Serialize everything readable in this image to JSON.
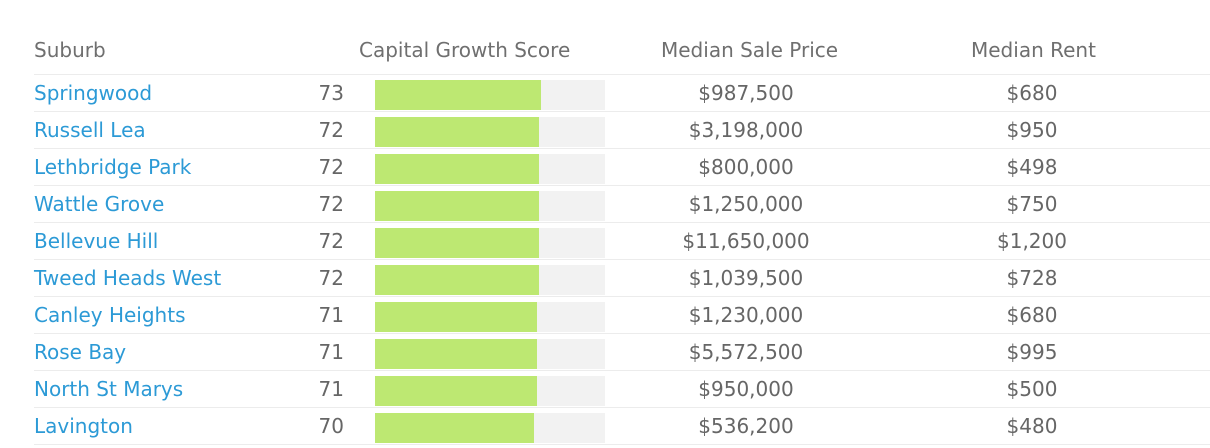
{
  "table": {
    "headers": {
      "suburb": "Suburb",
      "score": "Capital Growth Score",
      "price": "Median Sale Price",
      "rent": "Median Rent"
    },
    "colors": {
      "link": "#2c9ad6",
      "bar_fill": "#bde872",
      "bar_track": "#f2f2f2",
      "text": "#666666",
      "divider": "#ececec"
    },
    "rows": [
      {
        "suburb": "Springwood",
        "score": "73",
        "score_value": 73,
        "price": "$987,500",
        "rent": "$680"
      },
      {
        "suburb": "Russell Lea",
        "score": "72",
        "score_value": 72,
        "price": "$3,198,000",
        "rent": "$950"
      },
      {
        "suburb": "Lethbridge Park",
        "score": "72",
        "score_value": 72,
        "price": "$800,000",
        "rent": "$498"
      },
      {
        "suburb": "Wattle Grove",
        "score": "72",
        "score_value": 72,
        "price": "$1,250,000",
        "rent": "$750"
      },
      {
        "suburb": "Bellevue Hill",
        "score": "72",
        "score_value": 72,
        "price": "$11,650,000",
        "rent": "$1,200"
      },
      {
        "suburb": "Tweed Heads West",
        "score": "72",
        "score_value": 72,
        "price": "$1,039,500",
        "rent": "$728"
      },
      {
        "suburb": "Canley Heights",
        "score": "71",
        "score_value": 71,
        "price": "$1,230,000",
        "rent": "$680"
      },
      {
        "suburb": "Rose Bay",
        "score": "71",
        "score_value": 71,
        "price": "$5,572,500",
        "rent": "$995"
      },
      {
        "suburb": "North St Marys",
        "score": "71",
        "score_value": 71,
        "price": "$950,000",
        "rent": "$500"
      },
      {
        "suburb": "Lavington",
        "score": "70",
        "score_value": 70,
        "price": "$536,200",
        "rent": "$480"
      }
    ]
  }
}
